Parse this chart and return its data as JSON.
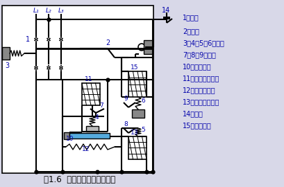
{
  "title": "图1.6  低压断路器工作原理图",
  "title_fontsize": 8.5,
  "legend": [
    "1一触头",
    "2一搭钩",
    "3、4、5、6一弹簧",
    "7、8、9一衔铁",
    "10一双金属片",
    "11一过流脱扣线圈",
    "12一加热电阻丝",
    "13一失压脱扣线圈",
    "14一按钮",
    "15一分励线圈"
  ],
  "text_color": "#0000AA",
  "line_color": "#000000",
  "bg_color": "#D8D8E8",
  "diagram_bg": "#FFFFFF",
  "gray_fill": "#888888",
  "blue_fill": "#55AADD",
  "light_gray": "#BBBBBB",
  "med_gray": "#999999"
}
